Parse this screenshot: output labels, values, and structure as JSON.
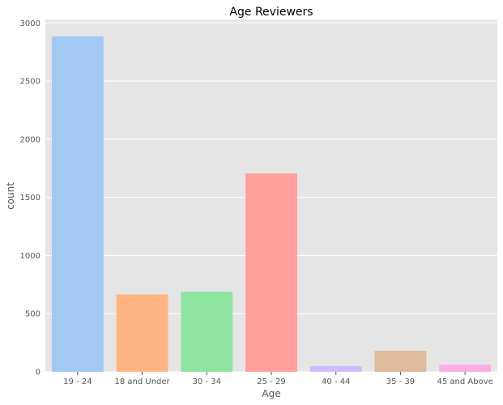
{
  "chart_data": {
    "type": "bar",
    "title": "Age Reviewers",
    "xlabel": "Age",
    "ylabel": "count",
    "categories": [
      "19 - 24",
      "18 and Under",
      "30 - 34",
      "25 - 29",
      "40 - 44",
      "35 - 39",
      "45 and Above"
    ],
    "values": [
      2885,
      665,
      688,
      1705,
      48,
      180,
      62
    ],
    "colors": [
      "#a1c9f4",
      "#ffb482",
      "#8de5a1",
      "#ff9f9b",
      "#d0bbff",
      "#debb9b",
      "#fab0e4"
    ],
    "ylim": [
      0,
      3030
    ],
    "yticks": [
      0,
      500,
      1000,
      1500,
      2000,
      2500,
      3000
    ],
    "grid": true,
    "background": "#e5e5e5",
    "grid_color": "#ffffff"
  }
}
